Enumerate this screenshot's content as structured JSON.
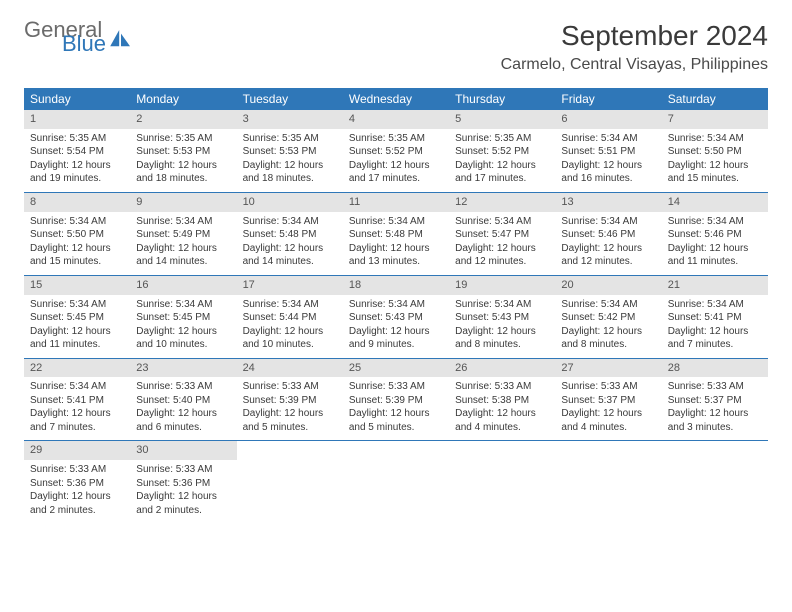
{
  "logo": {
    "main": "General",
    "sub": "Blue"
  },
  "title": "September 2024",
  "location": "Carmelo, Central Visayas, Philippines",
  "colors": {
    "header_bg": "#2f77b8",
    "header_text": "#ffffff",
    "daynum_bg": "#e4e4e4",
    "row_border": "#2f77b8",
    "logo_gray": "#6b6b6b",
    "logo_blue": "#2f77b8"
  },
  "weekdays": [
    "Sunday",
    "Monday",
    "Tuesday",
    "Wednesday",
    "Thursday",
    "Friday",
    "Saturday"
  ],
  "weeks": [
    [
      {
        "n": "1",
        "sr": "Sunrise: 5:35 AM",
        "ss": "Sunset: 5:54 PM",
        "d1": "Daylight: 12 hours",
        "d2": "and 19 minutes."
      },
      {
        "n": "2",
        "sr": "Sunrise: 5:35 AM",
        "ss": "Sunset: 5:53 PM",
        "d1": "Daylight: 12 hours",
        "d2": "and 18 minutes."
      },
      {
        "n": "3",
        "sr": "Sunrise: 5:35 AM",
        "ss": "Sunset: 5:53 PM",
        "d1": "Daylight: 12 hours",
        "d2": "and 18 minutes."
      },
      {
        "n": "4",
        "sr": "Sunrise: 5:35 AM",
        "ss": "Sunset: 5:52 PM",
        "d1": "Daylight: 12 hours",
        "d2": "and 17 minutes."
      },
      {
        "n": "5",
        "sr": "Sunrise: 5:35 AM",
        "ss": "Sunset: 5:52 PM",
        "d1": "Daylight: 12 hours",
        "d2": "and 17 minutes."
      },
      {
        "n": "6",
        "sr": "Sunrise: 5:34 AM",
        "ss": "Sunset: 5:51 PM",
        "d1": "Daylight: 12 hours",
        "d2": "and 16 minutes."
      },
      {
        "n": "7",
        "sr": "Sunrise: 5:34 AM",
        "ss": "Sunset: 5:50 PM",
        "d1": "Daylight: 12 hours",
        "d2": "and 15 minutes."
      }
    ],
    [
      {
        "n": "8",
        "sr": "Sunrise: 5:34 AM",
        "ss": "Sunset: 5:50 PM",
        "d1": "Daylight: 12 hours",
        "d2": "and 15 minutes."
      },
      {
        "n": "9",
        "sr": "Sunrise: 5:34 AM",
        "ss": "Sunset: 5:49 PM",
        "d1": "Daylight: 12 hours",
        "d2": "and 14 minutes."
      },
      {
        "n": "10",
        "sr": "Sunrise: 5:34 AM",
        "ss": "Sunset: 5:48 PM",
        "d1": "Daylight: 12 hours",
        "d2": "and 14 minutes."
      },
      {
        "n": "11",
        "sr": "Sunrise: 5:34 AM",
        "ss": "Sunset: 5:48 PM",
        "d1": "Daylight: 12 hours",
        "d2": "and 13 minutes."
      },
      {
        "n": "12",
        "sr": "Sunrise: 5:34 AM",
        "ss": "Sunset: 5:47 PM",
        "d1": "Daylight: 12 hours",
        "d2": "and 12 minutes."
      },
      {
        "n": "13",
        "sr": "Sunrise: 5:34 AM",
        "ss": "Sunset: 5:46 PM",
        "d1": "Daylight: 12 hours",
        "d2": "and 12 minutes."
      },
      {
        "n": "14",
        "sr": "Sunrise: 5:34 AM",
        "ss": "Sunset: 5:46 PM",
        "d1": "Daylight: 12 hours",
        "d2": "and 11 minutes."
      }
    ],
    [
      {
        "n": "15",
        "sr": "Sunrise: 5:34 AM",
        "ss": "Sunset: 5:45 PM",
        "d1": "Daylight: 12 hours",
        "d2": "and 11 minutes."
      },
      {
        "n": "16",
        "sr": "Sunrise: 5:34 AM",
        "ss": "Sunset: 5:45 PM",
        "d1": "Daylight: 12 hours",
        "d2": "and 10 minutes."
      },
      {
        "n": "17",
        "sr": "Sunrise: 5:34 AM",
        "ss": "Sunset: 5:44 PM",
        "d1": "Daylight: 12 hours",
        "d2": "and 10 minutes."
      },
      {
        "n": "18",
        "sr": "Sunrise: 5:34 AM",
        "ss": "Sunset: 5:43 PM",
        "d1": "Daylight: 12 hours",
        "d2": "and 9 minutes."
      },
      {
        "n": "19",
        "sr": "Sunrise: 5:34 AM",
        "ss": "Sunset: 5:43 PM",
        "d1": "Daylight: 12 hours",
        "d2": "and 8 minutes."
      },
      {
        "n": "20",
        "sr": "Sunrise: 5:34 AM",
        "ss": "Sunset: 5:42 PM",
        "d1": "Daylight: 12 hours",
        "d2": "and 8 minutes."
      },
      {
        "n": "21",
        "sr": "Sunrise: 5:34 AM",
        "ss": "Sunset: 5:41 PM",
        "d1": "Daylight: 12 hours",
        "d2": "and 7 minutes."
      }
    ],
    [
      {
        "n": "22",
        "sr": "Sunrise: 5:34 AM",
        "ss": "Sunset: 5:41 PM",
        "d1": "Daylight: 12 hours",
        "d2": "and 7 minutes."
      },
      {
        "n": "23",
        "sr": "Sunrise: 5:33 AM",
        "ss": "Sunset: 5:40 PM",
        "d1": "Daylight: 12 hours",
        "d2": "and 6 minutes."
      },
      {
        "n": "24",
        "sr": "Sunrise: 5:33 AM",
        "ss": "Sunset: 5:39 PM",
        "d1": "Daylight: 12 hours",
        "d2": "and 5 minutes."
      },
      {
        "n": "25",
        "sr": "Sunrise: 5:33 AM",
        "ss": "Sunset: 5:39 PM",
        "d1": "Daylight: 12 hours",
        "d2": "and 5 minutes."
      },
      {
        "n": "26",
        "sr": "Sunrise: 5:33 AM",
        "ss": "Sunset: 5:38 PM",
        "d1": "Daylight: 12 hours",
        "d2": "and 4 minutes."
      },
      {
        "n": "27",
        "sr": "Sunrise: 5:33 AM",
        "ss": "Sunset: 5:37 PM",
        "d1": "Daylight: 12 hours",
        "d2": "and 4 minutes."
      },
      {
        "n": "28",
        "sr": "Sunrise: 5:33 AM",
        "ss": "Sunset: 5:37 PM",
        "d1": "Daylight: 12 hours",
        "d2": "and 3 minutes."
      }
    ],
    [
      {
        "n": "29",
        "sr": "Sunrise: 5:33 AM",
        "ss": "Sunset: 5:36 PM",
        "d1": "Daylight: 12 hours",
        "d2": "and 2 minutes."
      },
      {
        "n": "30",
        "sr": "Sunrise: 5:33 AM",
        "ss": "Sunset: 5:36 PM",
        "d1": "Daylight: 12 hours",
        "d2": "and 2 minutes."
      },
      null,
      null,
      null,
      null,
      null
    ]
  ]
}
